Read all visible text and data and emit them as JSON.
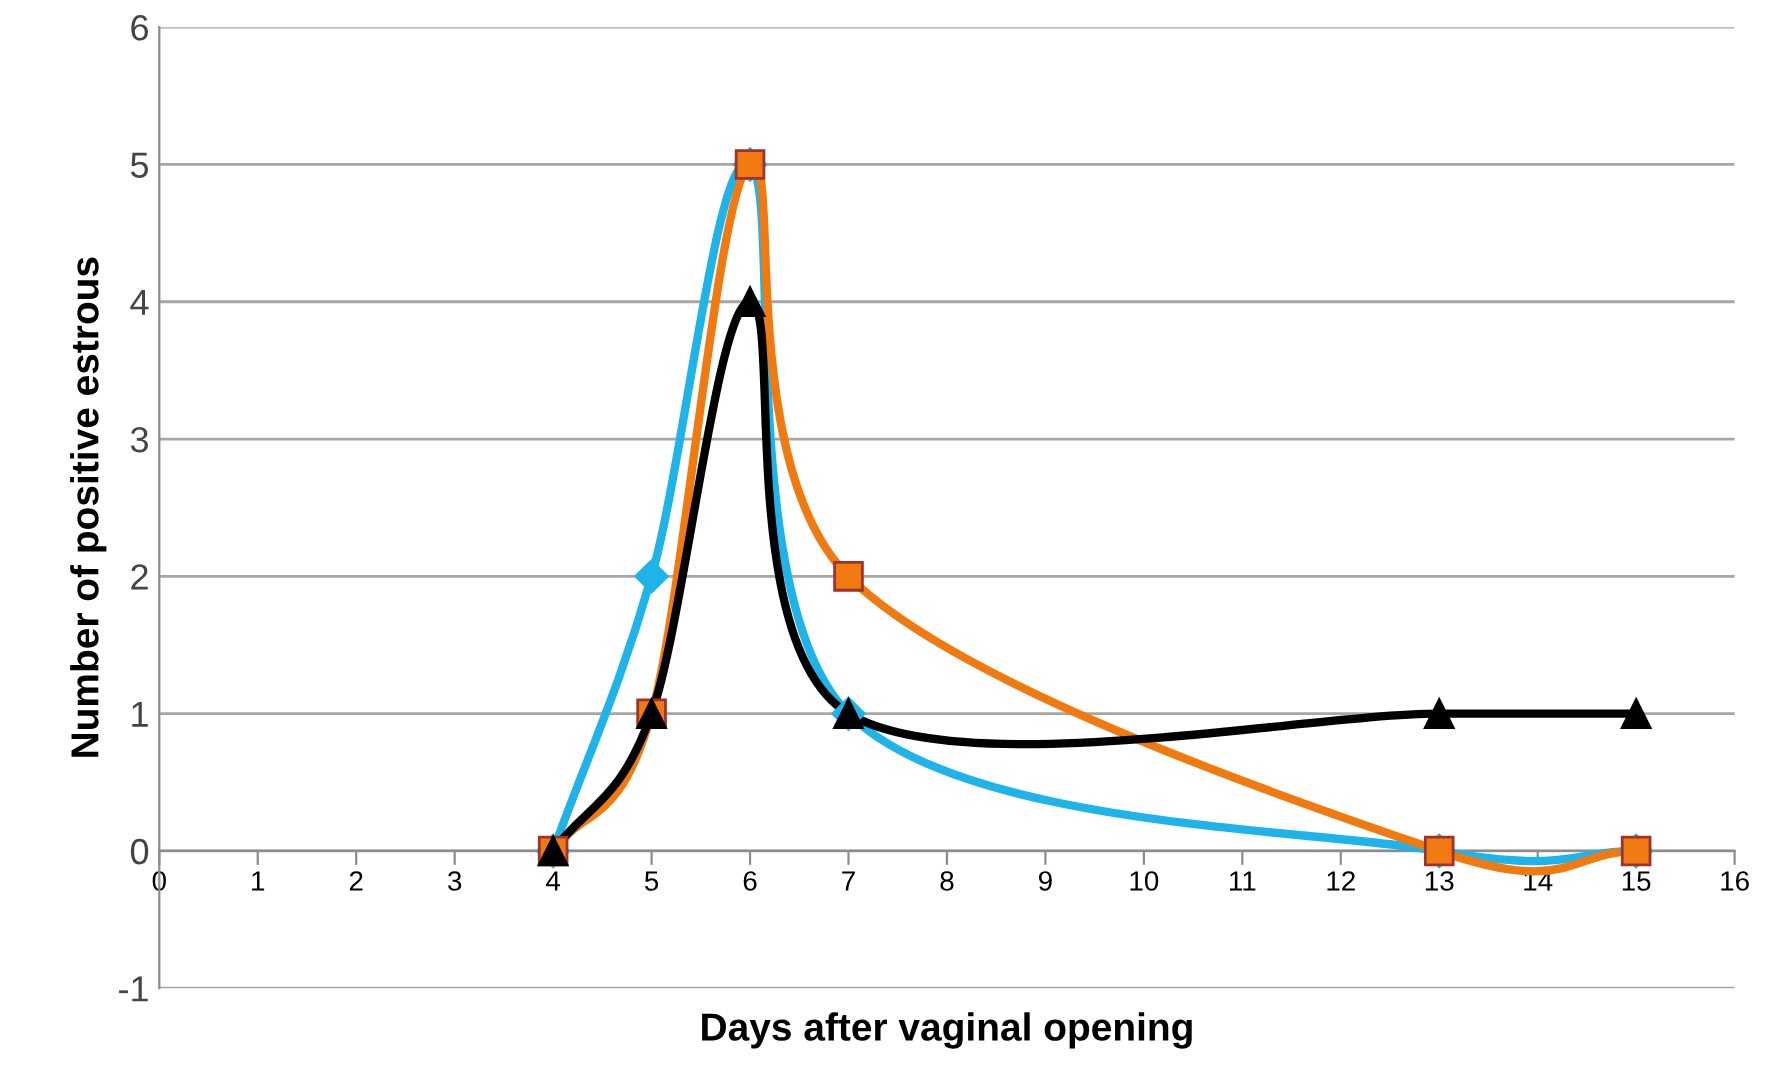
{
  "chart_data": {
    "type": "line",
    "xlabel": "Days after vaginal opening",
    "ylabel": "Number of positive estrous",
    "xlim": [
      0,
      16
    ],
    "ylim": [
      -1,
      6
    ],
    "xticks": [
      0,
      1,
      2,
      3,
      4,
      5,
      6,
      7,
      8,
      9,
      10,
      11,
      12,
      13,
      14,
      15,
      16
    ],
    "yticks": [
      -1,
      0,
      1,
      2,
      3,
      4,
      5,
      6
    ],
    "grid": "y",
    "legend": false,
    "series": [
      {
        "color": "#1eb4ea",
        "marker": "diamond",
        "x": [
          4,
          5,
          6,
          7,
          13,
          15
        ],
        "values": [
          0,
          2,
          5,
          1,
          0,
          0
        ]
      },
      {
        "color": "#f07a10",
        "marker": "square",
        "x": [
          4,
          5,
          6,
          7,
          13,
          15
        ],
        "values": [
          0,
          1,
          5,
          2,
          0,
          0
        ]
      },
      {
        "color": "#000000",
        "marker": "triangle",
        "x": [
          4,
          5,
          6,
          7,
          13,
          15
        ],
        "values": [
          0,
          1,
          4,
          1,
          1,
          1
        ]
      }
    ]
  }
}
